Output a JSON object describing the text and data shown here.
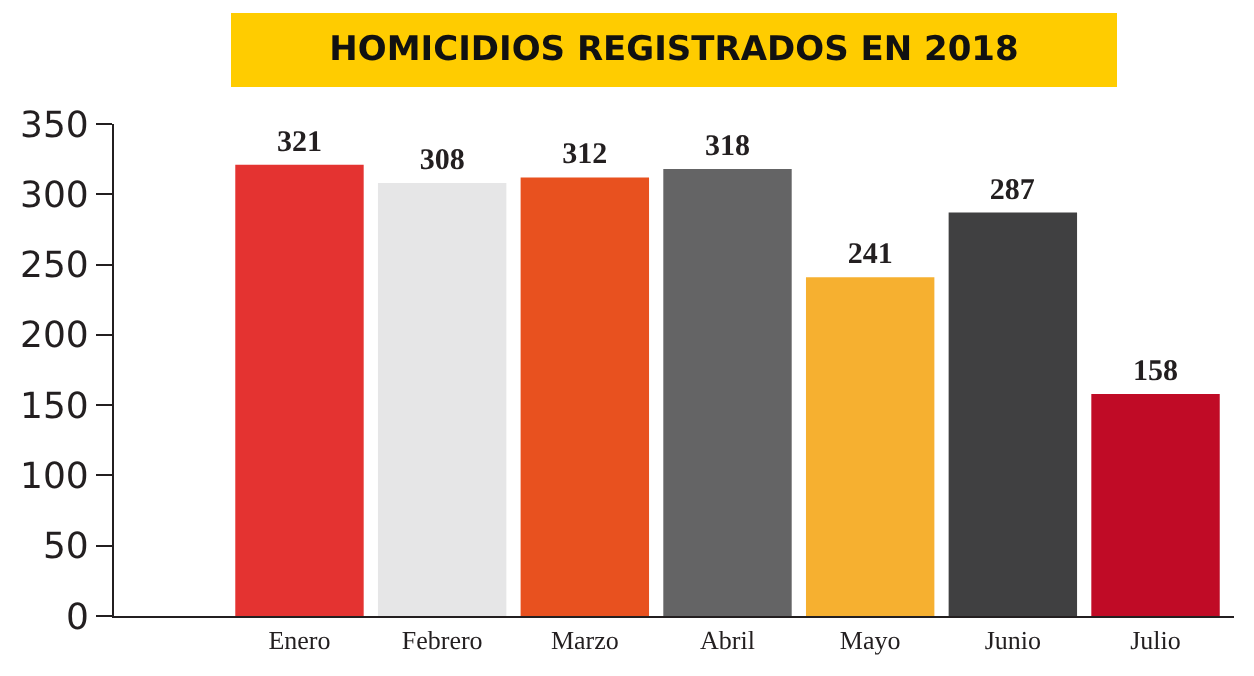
{
  "chart_data": {
    "type": "bar",
    "title": "HOMICIDIOS REGISTRADOS EN 2018",
    "categories": [
      "Enero",
      "Febrero",
      "Marzo",
      "Abril",
      "Mayo",
      "Junio",
      "Julio"
    ],
    "values": [
      321,
      308,
      312,
      318,
      241,
      287,
      158
    ],
    "colors": [
      "#e43331",
      "#e6e6e7",
      "#e8511f",
      "#646465",
      "#f6b030",
      "#404041",
      "#c00b26"
    ],
    "ylim": [
      0,
      350
    ],
    "yticks": [
      0,
      50,
      100,
      150,
      200,
      250,
      300,
      350
    ],
    "data_labels": true,
    "legend": false
  }
}
